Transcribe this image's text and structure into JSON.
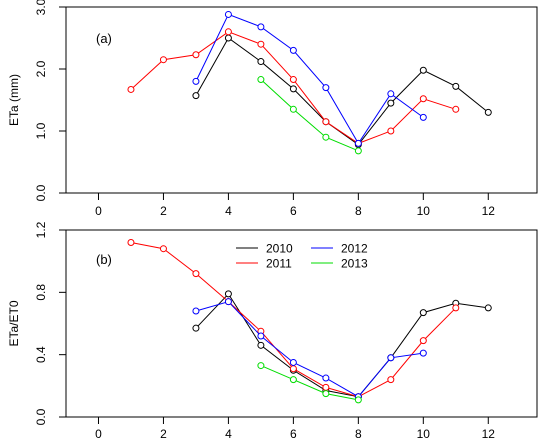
{
  "colors": {
    "2010": "#000000",
    "2011": "#ff0000",
    "2012": "#0000ff",
    "2013": "#00dd00",
    "axis": "#000000"
  },
  "legend": [
    {
      "year": "2010",
      "label": "2010"
    },
    {
      "year": "2012",
      "label": "2012"
    },
    {
      "year": "2011",
      "label": "2011"
    },
    {
      "year": "2013",
      "label": "2013"
    }
  ],
  "chart_data": [
    {
      "type": "line",
      "panel_label": "(a)",
      "ylabel": "ETa (mm)",
      "xlabel": "",
      "xlim": [
        -1,
        13.5
      ],
      "ylim": [
        0,
        3
      ],
      "xticks": [
        "0",
        "2",
        "4",
        "6",
        "8",
        "10",
        "12"
      ],
      "xtick_values": [
        0,
        2,
        4,
        6,
        8,
        10,
        12
      ],
      "yticks": [
        "0.0",
        "1.0",
        "2.0",
        "3.0"
      ],
      "ytick_values": [
        0,
        1,
        2,
        3
      ],
      "series": [
        {
          "name": "2010",
          "x": [
            3,
            4,
            5,
            6,
            7,
            8,
            9,
            10,
            11,
            12
          ],
          "y": [
            1.57,
            2.5,
            2.12,
            1.68,
            1.15,
            0.78,
            1.45,
            1.98,
            1.72,
            1.3
          ]
        },
        {
          "name": "2011",
          "x": [
            1,
            2,
            3,
            4,
            5,
            6,
            7,
            8,
            9,
            10,
            11
          ],
          "y": [
            1.67,
            2.15,
            2.23,
            2.6,
            2.4,
            1.83,
            1.15,
            0.8,
            1.0,
            1.52,
            1.35
          ]
        },
        {
          "name": "2012",
          "x": [
            3,
            4,
            5,
            6,
            7,
            8,
            9,
            10
          ],
          "y": [
            1.8,
            2.88,
            2.68,
            2.3,
            1.7,
            0.8,
            1.6,
            1.22
          ]
        },
        {
          "name": "2013",
          "x": [
            5,
            6,
            7,
            8
          ],
          "y": [
            1.83,
            1.35,
            0.9,
            0.68
          ]
        }
      ]
    },
    {
      "type": "line",
      "panel_label": "(b)",
      "ylabel": "ETa/ET0",
      "xlabel": "",
      "xlim": [
        -1,
        13.5
      ],
      "ylim": [
        0,
        1.2
      ],
      "xticks": [
        "0",
        "2",
        "4",
        "6",
        "8",
        "10",
        "12"
      ],
      "xtick_values": [
        0,
        2,
        4,
        6,
        8,
        10,
        12
      ],
      "yticks": [
        "0.0",
        "0.4",
        "0.8",
        "1.2"
      ],
      "ytick_values": [
        0,
        0.4,
        0.8,
        1.2
      ],
      "series": [
        {
          "name": "2010",
          "x": [
            3,
            4,
            5,
            6,
            7,
            8,
            9,
            10,
            11,
            12
          ],
          "y": [
            0.57,
            0.79,
            0.46,
            0.3,
            0.17,
            0.13,
            0.38,
            0.67,
            0.73,
            0.7
          ]
        },
        {
          "name": "2011",
          "x": [
            1,
            2,
            3,
            4,
            5,
            6,
            7,
            8,
            9,
            10,
            11
          ],
          "y": [
            1.12,
            1.08,
            0.92,
            0.74,
            0.55,
            0.31,
            0.19,
            0.13,
            0.24,
            0.49,
            0.7
          ]
        },
        {
          "name": "2012",
          "x": [
            3,
            4,
            5,
            6,
            7,
            8,
            9,
            10
          ],
          "y": [
            0.68,
            0.74,
            0.52,
            0.35,
            0.25,
            0.13,
            0.38,
            0.41
          ]
        },
        {
          "name": "2013",
          "x": [
            5,
            6,
            7,
            8
          ],
          "y": [
            0.33,
            0.24,
            0.15,
            0.11
          ]
        }
      ]
    }
  ]
}
